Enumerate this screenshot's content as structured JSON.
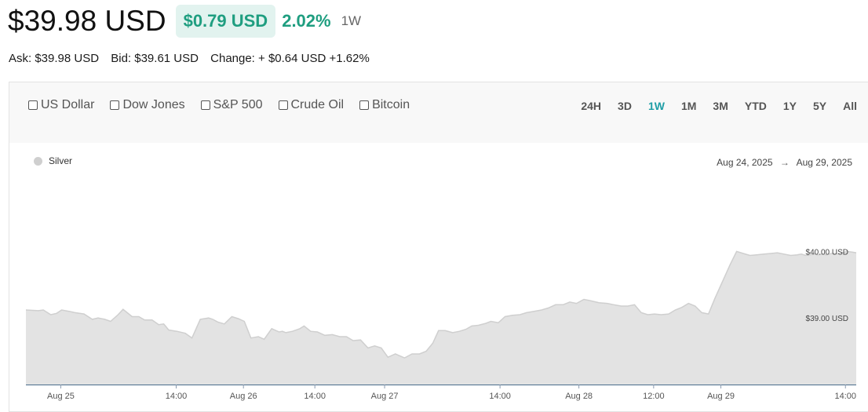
{
  "header": {
    "price": "$39.98 USD",
    "change_value": "$0.79 USD",
    "change_percent": "2.02%",
    "range": "1W"
  },
  "quote": {
    "ask": "Ask: $39.98 USD",
    "bid": "Bid: $39.61 USD",
    "change": "Change: + $0.64 USD +1.62%"
  },
  "compare": [
    "US Dollar",
    "Dow Jones",
    "S&P 500",
    "Crude Oil",
    "Bitcoin"
  ],
  "ranges": [
    "24H",
    "3D",
    "1W",
    "1M",
    "3M",
    "YTD",
    "1Y",
    "5Y",
    "All"
  ],
  "active_range": "1W",
  "legend": {
    "label": "Silver"
  },
  "date_range": {
    "from": "Aug 24, 2025",
    "arrow": "→",
    "to": "Aug 29, 2025"
  },
  "colors": {
    "accent": "#1f9e80",
    "active_range": "#1f9ea6",
    "area": "#e3e3e3",
    "line": "#cfcfcf",
    "axis": "#4a6d8c"
  },
  "chart_data": {
    "type": "area",
    "ylabels": [
      "$40.00 USD",
      "$39.00 USD"
    ],
    "ylabel_values": [
      40.0,
      39.0
    ],
    "ylim": [
      38.0,
      40.3
    ],
    "xlabels": [
      "Aug 25",
      "14:00",
      "Aug 26",
      "14:00",
      "Aug 27",
      "14:00",
      "Aug 28",
      "12:00",
      "Aug 29",
      "14:00"
    ],
    "xlabel_positions": [
      0.042,
      0.181,
      0.262,
      0.348,
      0.432,
      0.571,
      0.666,
      0.756,
      0.837,
      0.987
    ],
    "series": [
      {
        "x": [
          0.0,
          0.015,
          0.021,
          0.03,
          0.037,
          0.043,
          0.052,
          0.059,
          0.07,
          0.08,
          0.087,
          0.095,
          0.102,
          0.111,
          0.117,
          0.128,
          0.136,
          0.143,
          0.152,
          0.16,
          0.166,
          0.172,
          0.182,
          0.192,
          0.2,
          0.21,
          0.22,
          0.225,
          0.231,
          0.239,
          0.248,
          0.256,
          0.263,
          0.271,
          0.28,
          0.287,
          0.296,
          0.305,
          0.309,
          0.313,
          0.321,
          0.33,
          0.335,
          0.343,
          0.351,
          0.36,
          0.369,
          0.378,
          0.386,
          0.394,
          0.403,
          0.412,
          0.42,
          0.428,
          0.436,
          0.445,
          0.456,
          0.465,
          0.474,
          0.482,
          0.49,
          0.497,
          0.505,
          0.514,
          0.522,
          0.53,
          0.537,
          0.545,
          0.554,
          0.56,
          0.569,
          0.577,
          0.586,
          0.595,
          0.603,
          0.612,
          0.621,
          0.629,
          0.638,
          0.647,
          0.655,
          0.663,
          0.672,
          0.68,
          0.69,
          0.7,
          0.708,
          0.717,
          0.725,
          0.733,
          0.741,
          0.749,
          0.757,
          0.765,
          0.774,
          0.782,
          0.79,
          0.798,
          0.806,
          0.814,
          0.822,
          0.83,
          0.839,
          0.848,
          0.856,
          0.864,
          0.872,
          0.88,
          0.889,
          0.897,
          0.905,
          0.913,
          0.921,
          0.929,
          0.934,
          0.939,
          0.944,
          0.949,
          0.954,
          0.959,
          0.964,
          0.97,
          0.976,
          0.983,
          0.989,
          0.995,
          1.0
        ],
        "y": [
          39.12,
          39.11,
          39.12,
          39.05,
          39.07,
          39.12,
          39.1,
          39.08,
          39.06,
          38.98,
          39.0,
          38.98,
          38.95,
          39.05,
          39.13,
          39.02,
          39.02,
          38.97,
          38.97,
          38.9,
          38.91,
          38.82,
          38.8,
          38.77,
          38.7,
          38.98,
          39.0,
          38.98,
          38.94,
          38.91,
          39.02,
          38.99,
          38.95,
          38.7,
          38.72,
          38.68,
          38.84,
          38.79,
          38.8,
          38.78,
          38.8,
          38.84,
          38.88,
          38.8,
          38.79,
          38.74,
          38.75,
          38.72,
          38.72,
          38.66,
          38.67,
          38.55,
          38.58,
          38.55,
          38.41,
          38.46,
          38.4,
          38.46,
          38.46,
          38.5,
          38.62,
          38.81,
          38.81,
          38.78,
          38.8,
          38.83,
          38.88,
          38.89,
          38.92,
          38.95,
          38.93,
          39.02,
          39.04,
          39.05,
          39.08,
          39.1,
          39.12,
          39.15,
          39.2,
          39.2,
          39.24,
          39.22,
          39.28,
          39.26,
          39.23,
          39.22,
          39.2,
          39.18,
          39.18,
          39.2,
          39.08,
          39.05,
          39.06,
          39.05,
          39.06,
          39.12,
          39.16,
          39.22,
          39.18,
          39.08,
          39.06,
          39.3,
          39.55,
          39.8,
          40.0,
          39.97,
          39.94,
          39.95,
          39.96,
          39.97,
          39.98,
          39.96,
          39.94,
          39.95,
          39.96,
          39.94,
          39.95,
          39.96,
          39.95,
          39.96,
          39.95,
          39.97,
          39.96,
          39.98,
          40.0,
          39.99,
          39.98
        ]
      }
    ]
  }
}
